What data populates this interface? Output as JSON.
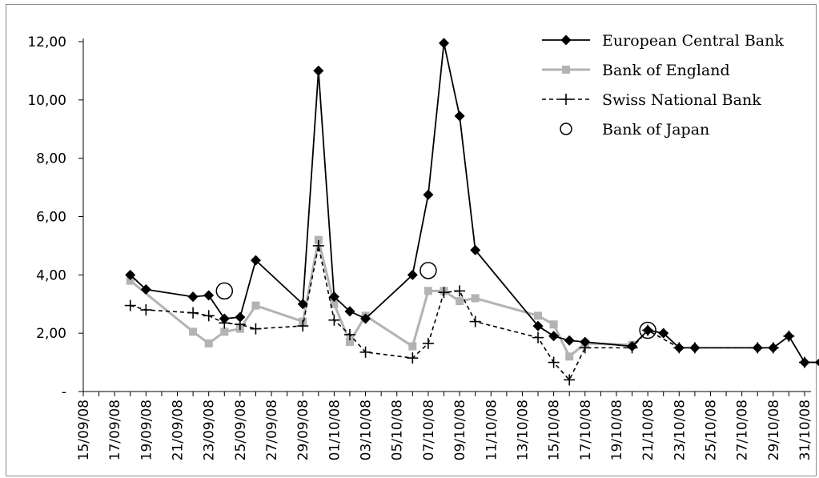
{
  "chart_data": {
    "type": "line",
    "title": "",
    "xlabel": "",
    "ylabel": "",
    "ylim": [
      0,
      12
    ],
    "y_ticks": [
      "-",
      "2,00",
      "4,00",
      "6,00",
      "8,00",
      "10,00",
      "12,00"
    ],
    "x_range": [
      "2008-09-15",
      "2008-10-31"
    ],
    "x_ticks": [
      "15/09/08",
      "17/09/08",
      "19/09/08",
      "21/09/08",
      "23/09/08",
      "25/09/08",
      "27/09/08",
      "29/09/08",
      "01/10/08",
      "03/10/08",
      "05/10/08",
      "07/10/08",
      "09/10/08",
      "11/10/08",
      "13/10/08",
      "15/10/08",
      "17/10/08",
      "19/10/08",
      "21/10/08",
      "23/10/08",
      "25/10/08",
      "27/10/08",
      "29/10/08",
      "31/10/08"
    ],
    "grid": false,
    "legend_position": "top-right",
    "series": [
      {
        "name": "European Central Bank",
        "color": "#000000",
        "marker": "diamond",
        "line": "solid",
        "points": [
          [
            "2008-09-18",
            4.0
          ],
          [
            "2008-09-19",
            3.5
          ],
          [
            "2008-09-22",
            3.25
          ],
          [
            "2008-09-23",
            3.3
          ],
          [
            "2008-09-24",
            2.5
          ],
          [
            "2008-09-25",
            2.55
          ],
          [
            "2008-09-26",
            4.5
          ],
          [
            "2008-09-29",
            3.0
          ],
          [
            "2008-09-30",
            11.0
          ],
          [
            "2008-10-01",
            3.25
          ],
          [
            "2008-10-02",
            2.75
          ],
          [
            "2008-10-03",
            2.5
          ],
          [
            "2008-10-06",
            4.0
          ],
          [
            "2008-10-07",
            6.75
          ],
          [
            "2008-10-08",
            11.95
          ],
          [
            "2008-10-09",
            9.45
          ],
          [
            "2008-10-10",
            4.85
          ],
          [
            "2008-10-14",
            2.25
          ],
          [
            "2008-10-15",
            1.9
          ],
          [
            "2008-10-16",
            1.75
          ],
          [
            "2008-10-17",
            1.7
          ],
          [
            "2008-10-20",
            1.55
          ],
          [
            "2008-10-21",
            2.1
          ],
          [
            "2008-10-22",
            2.0
          ],
          [
            "2008-10-23",
            1.5
          ],
          [
            "2008-10-24",
            1.5
          ],
          [
            "2008-10-28",
            1.5
          ],
          [
            "2008-10-29",
            1.5
          ],
          [
            "2008-10-30",
            1.9
          ],
          [
            "2008-10-31",
            1.0
          ],
          [
            "2008-11-01",
            1.0
          ]
        ]
      },
      {
        "name": "Bank of England",
        "color": "#b3b3b3",
        "marker": "square",
        "line": "solid",
        "points": [
          [
            "2008-09-18",
            3.8
          ],
          [
            "2008-09-22",
            2.05
          ],
          [
            "2008-09-23",
            1.65
          ],
          [
            "2008-09-24",
            2.05
          ],
          [
            "2008-09-25",
            2.15
          ],
          [
            "2008-09-26",
            2.95
          ],
          [
            "2008-09-29",
            2.4
          ],
          [
            "2008-09-30",
            5.2
          ],
          [
            "2008-10-01",
            3.0
          ],
          [
            "2008-10-02",
            1.7
          ],
          [
            "2008-10-03",
            2.6
          ],
          [
            "2008-10-06",
            1.55
          ],
          [
            "2008-10-07",
            3.45
          ],
          [
            "2008-10-08",
            3.45
          ],
          [
            "2008-10-09",
            3.1
          ],
          [
            "2008-10-10",
            3.2
          ],
          [
            "2008-10-14",
            2.6
          ],
          [
            "2008-10-15",
            2.3
          ],
          [
            "2008-10-16",
            1.2
          ],
          [
            "2008-10-17",
            1.65
          ],
          [
            "2008-10-20",
            1.6
          ]
        ]
      },
      {
        "name": "Swiss National Bank",
        "color": "#000000",
        "marker": "plus",
        "line": "dashed",
        "points": [
          [
            "2008-09-18",
            2.95
          ],
          [
            "2008-09-19",
            2.8
          ],
          [
            "2008-09-22",
            2.7
          ],
          [
            "2008-09-23",
            2.6
          ],
          [
            "2008-09-24",
            2.35
          ],
          [
            "2008-09-25",
            2.3
          ],
          [
            "2008-09-26",
            2.15
          ],
          [
            "2008-09-29",
            2.25
          ],
          [
            "2008-09-30",
            5.0
          ],
          [
            "2008-10-01",
            2.45
          ],
          [
            "2008-10-02",
            1.95
          ],
          [
            "2008-10-03",
            1.35
          ],
          [
            "2008-10-06",
            1.15
          ],
          [
            "2008-10-07",
            1.65
          ],
          [
            "2008-10-08",
            3.4
          ],
          [
            "2008-10-09",
            3.45
          ],
          [
            "2008-10-10",
            2.4
          ],
          [
            "2008-10-14",
            1.85
          ],
          [
            "2008-10-15",
            1.0
          ],
          [
            "2008-10-16",
            0.4
          ],
          [
            "2008-10-17",
            1.5
          ],
          [
            "2008-10-20",
            1.5
          ],
          [
            "2008-10-21",
            2.1
          ],
          [
            "2008-10-23",
            1.5
          ],
          [
            "2008-10-24",
            1.5
          ],
          [
            "2008-10-28",
            1.5
          ],
          [
            "2008-10-29",
            1.5
          ],
          [
            "2008-10-30",
            1.9
          ],
          [
            "2008-10-31",
            1.0
          ],
          [
            "2008-11-01",
            1.0
          ]
        ]
      },
      {
        "name": "Bank of Japan",
        "color": "#000000",
        "marker": "open-circle",
        "line": "none",
        "points": [
          [
            "2008-09-24",
            3.45
          ],
          [
            "2008-10-07",
            4.15
          ],
          [
            "2008-10-21",
            2.1
          ]
        ]
      }
    ]
  }
}
